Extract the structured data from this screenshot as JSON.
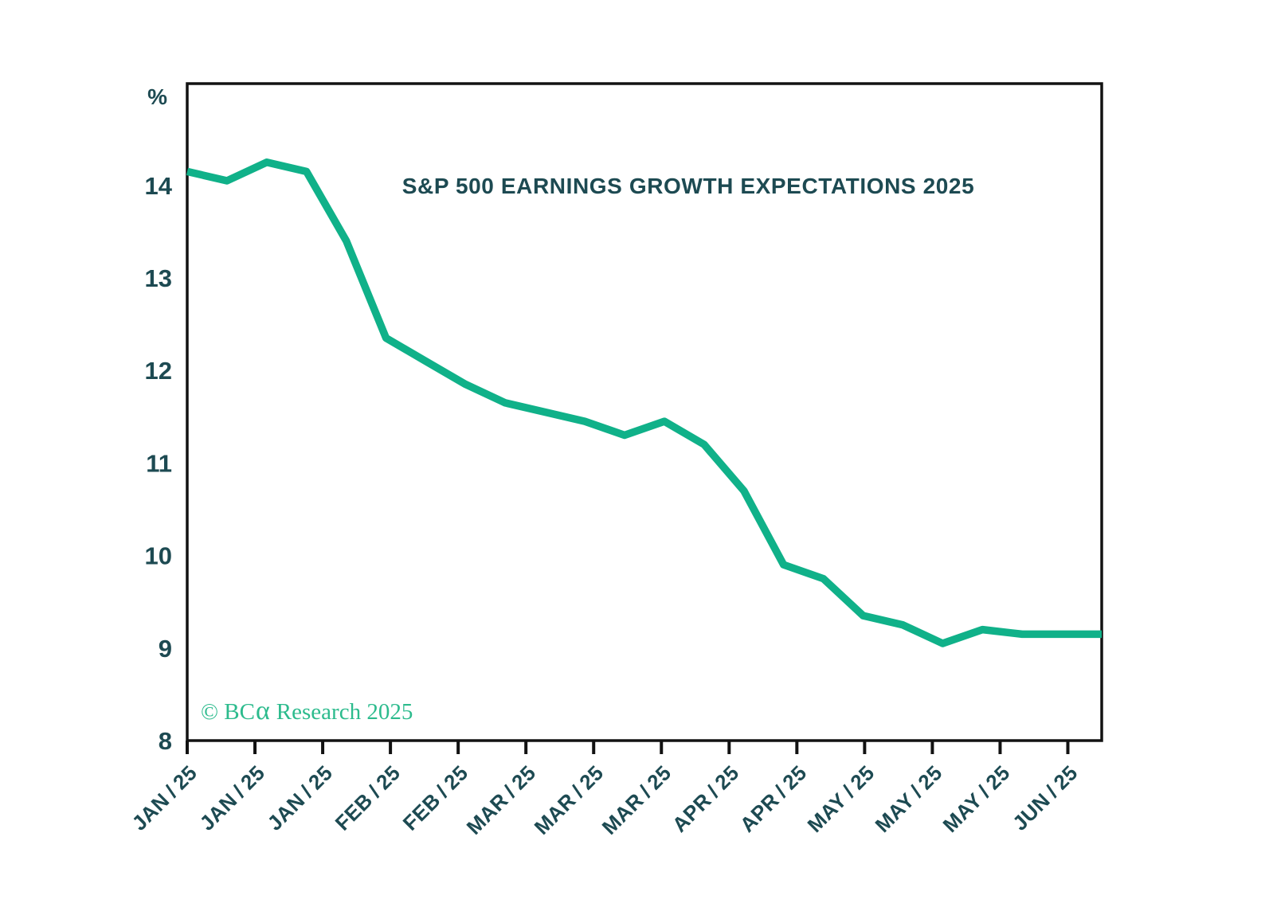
{
  "page": {
    "background": "#ffffff"
  },
  "colors": {
    "ink": "#1d4a52",
    "line": "#10b189",
    "axis": "#121212",
    "copyright": "#2cbb8d"
  },
  "copyright": {
    "prefix": "© BC",
    "alpha": "α",
    "suffix": "Research 2025"
  },
  "chart_data": {
    "type": "line",
    "title": "S&P 500 EARNINGS GROWTH EXPECTATIONS 2025",
    "ylabel": "%",
    "xlabel": "",
    "ylim": [
      8,
      15.1
    ],
    "yticks": [
      14,
      13,
      12,
      11,
      10,
      9,
      8
    ],
    "grid": false,
    "legend_position": "none",
    "xtick_labels": [
      "JAN / 25",
      "JAN / 25",
      "JAN / 25",
      "FEB / 25",
      "FEB / 25",
      "MAR / 25",
      "MAR / 25",
      "MAR / 25",
      "APR / 25",
      "APR / 25",
      "MAY / 25",
      "MAY / 25",
      "MAY / 25",
      "JUN / 25"
    ],
    "series": [
      {
        "name": "S&P 500 earnings growth expectations 2025 (%)",
        "x_frequency": "weekly",
        "values": [
          14.15,
          14.05,
          14.25,
          14.15,
          13.4,
          12.35,
          12.1,
          11.85,
          11.65,
          11.55,
          11.45,
          11.3,
          11.45,
          11.2,
          10.7,
          9.9,
          9.75,
          9.35,
          9.25,
          9.05,
          9.2,
          9.15,
          9.15,
          9.15
        ]
      }
    ],
    "annotations": [
      "© BCα Research 2025"
    ]
  }
}
